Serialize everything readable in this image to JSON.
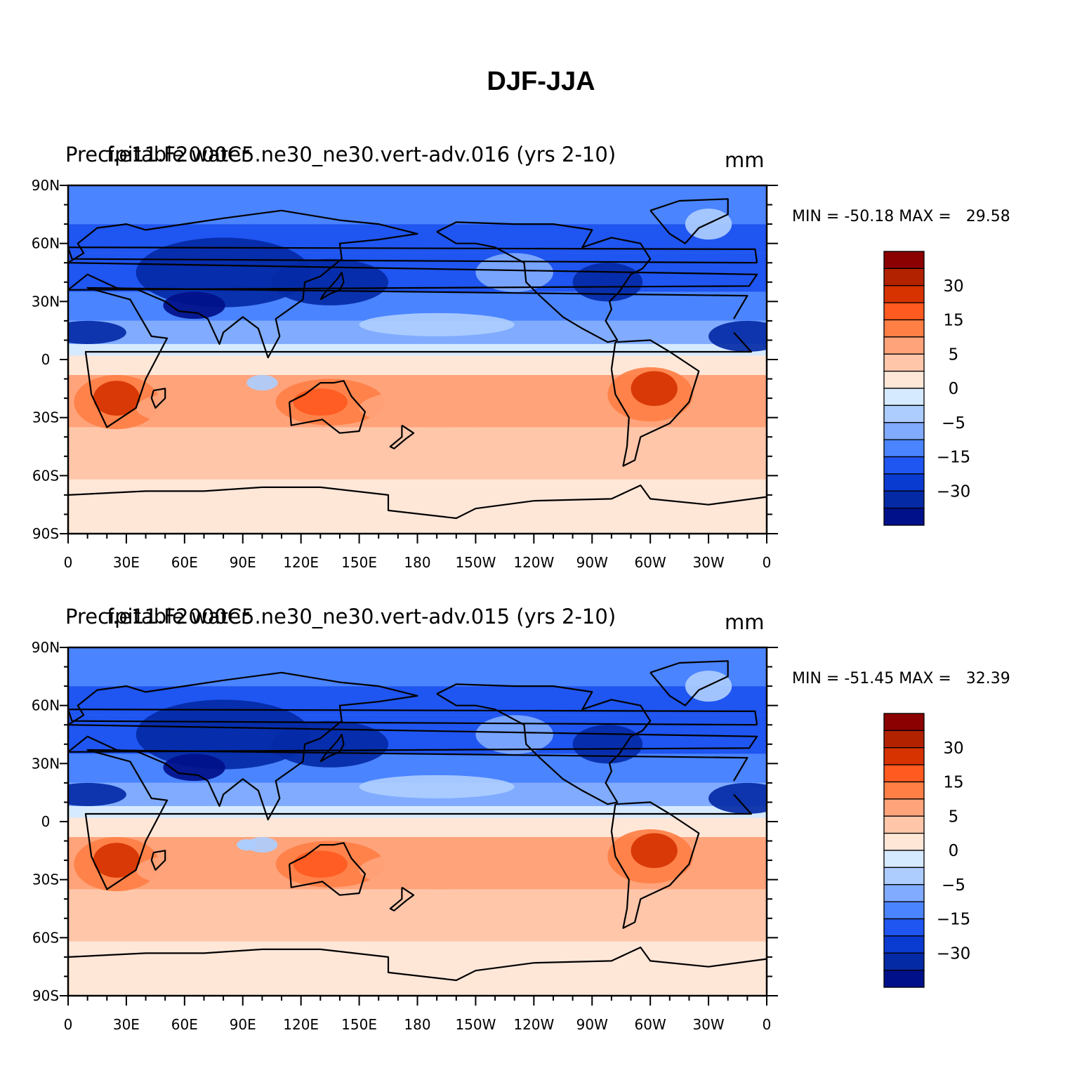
{
  "title": "DJF-JJA",
  "panels": [
    {
      "left_title": "Precipitable water",
      "center_title": "f.e11.F2000C5.ne30_ne30.vert-adv.016 (yrs 2-10)",
      "units": "mm",
      "min_label": "MIN =",
      "min_value": "-50.18",
      "max_label": "MAX =",
      "max_value": "29.58"
    },
    {
      "left_title": "Precipitable water",
      "center_title": "f.e11.F2000C5.ne30_ne30.vert-adv.015 (yrs 2-10)",
      "units": "mm",
      "min_label": "MIN =",
      "min_value": "-51.45",
      "max_label": "MAX =",
      "max_value": "32.39"
    }
  ],
  "axes": {
    "lat_labels": [
      "90N",
      "60N",
      "30N",
      "0",
      "30S",
      "60S",
      "90S"
    ],
    "lon_labels": [
      "0",
      "30E",
      "60E",
      "90E",
      "120E",
      "150E",
      "180",
      "150W",
      "120W",
      "90W",
      "60W",
      "30W",
      "0"
    ]
  },
  "colorbar": {
    "labels": [
      "30",
      "15",
      "5",
      "0",
      "-5",
      "-15",
      "-30"
    ],
    "colors": [
      "#8b0000",
      "#b22200",
      "#d63300",
      "#ff5a1f",
      "#ff7f45",
      "#ffa37a",
      "#ffc6aa",
      "#ffe7d8",
      "#d6eaff",
      "#adcdff",
      "#80abff",
      "#4a84ff",
      "#1f55f0",
      "#0a3bd0",
      "#042aa6",
      "#00108a"
    ]
  },
  "map_colors": {
    "deep_blue": "#042aa6",
    "blue": "#1f55f0",
    "mid_blue": "#4a84ff",
    "light_blue": "#80abff",
    "pale_blue": "#adcdff",
    "paler_blue": "#d6eaff",
    "cream": "#ffe7d8",
    "peach": "#ffc6aa",
    "salmon": "#ffa37a",
    "orange": "#ff7f45",
    "red_orange": "#ff5a1f",
    "dark_orange": "#d63300"
  }
}
